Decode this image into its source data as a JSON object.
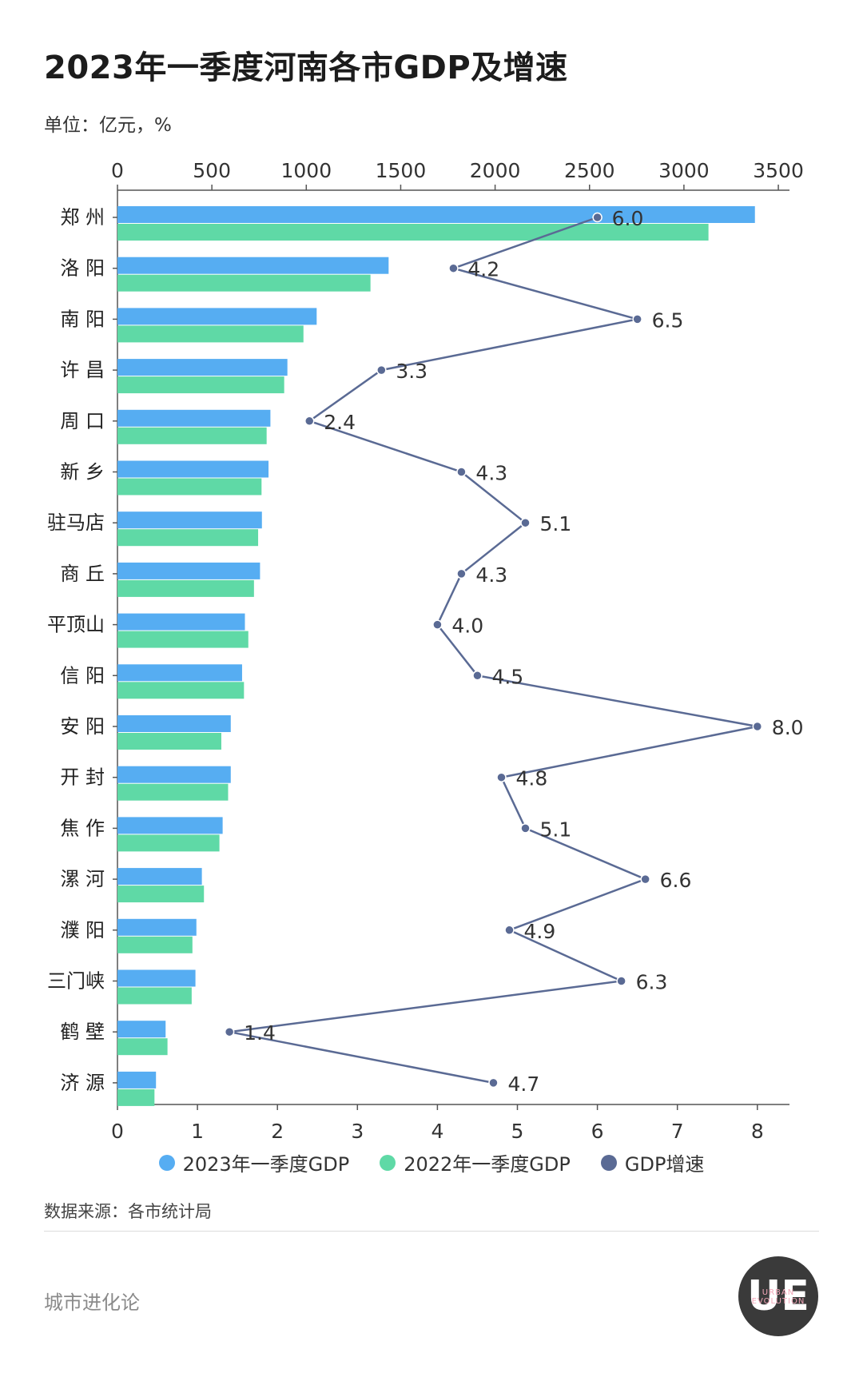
{
  "header": {
    "title": "2023年一季度河南各市GDP及增速",
    "unit": "单位：亿元，%"
  },
  "legend": {
    "gdp2023": "2023年一季度GDP",
    "gdp2022": "2022年一季度GDP",
    "growth": "GDP增速"
  },
  "footer": {
    "source": "数据来源：各市统计局",
    "brand": "城市进化论",
    "logo": "UE",
    "logo_sub": "URBAN EVOLUTION"
  },
  "colors": {
    "gdp2023": "#56adf2",
    "gdp2022": "#5fd9a6",
    "growth": "#5a6a94",
    "axis": "#555555"
  },
  "chart_data": {
    "type": "bar",
    "orientation": "horizontal",
    "categories": [
      "郑 州",
      "洛 阳",
      "南 阳",
      "许 昌",
      "周 口",
      "新 乡",
      "驻马店",
      "商 丘",
      "平顶山",
      "信 阳",
      "安 阳",
      "开 封",
      "焦 作",
      "漯 河",
      "濮 阳",
      "三门峡",
      "鹤 壁",
      "济 源"
    ],
    "series": [
      {
        "name": "2023年一季度GDP",
        "axis": "top",
        "values": [
          3376,
          1436,
          1055,
          900,
          810,
          800,
          765,
          755,
          675,
          660,
          600,
          600,
          557,
          447,
          418,
          413,
          255,
          204
        ]
      },
      {
        "name": "2022年一季度GDP",
        "axis": "top",
        "values": [
          3130,
          1340,
          985,
          883,
          790,
          763,
          745,
          723,
          693,
          670,
          550,
          586,
          540,
          458,
          397,
          393,
          265,
          196
        ]
      },
      {
        "name": "GDP增速",
        "type": "line",
        "axis": "bottom",
        "values": [
          6.0,
          4.2,
          6.5,
          3.3,
          2.4,
          4.3,
          5.1,
          4.3,
          4.0,
          4.5,
          8.0,
          4.8,
          5.1,
          6.6,
          4.9,
          6.3,
          1.4,
          4.7
        ],
        "labels": [
          "6.0",
          "4.2",
          "6.5",
          "3.3",
          "2.4",
          "4.3",
          "5.1",
          "4.3",
          "4.0",
          "4.5",
          "8.0",
          "4.8",
          "5.1",
          "6.6",
          "4.9",
          "6.3",
          "1.4",
          "4.7"
        ]
      }
    ],
    "top_axis": {
      "range": [
        0,
        3500
      ],
      "ticks": [
        0,
        500,
        1000,
        1500,
        2000,
        2500,
        3000,
        3500
      ],
      "tick_labels": [
        "0",
        "500",
        "1000",
        "1500",
        "2000",
        "2500",
        "3000",
        "3500"
      ]
    },
    "bottom_axis": {
      "range": [
        0,
        8.4
      ],
      "ticks": [
        0,
        1,
        2,
        3,
        4,
        5,
        6,
        7,
        8
      ],
      "tick_labels": [
        "0",
        "1",
        "2",
        "3",
        "4",
        "5",
        "6",
        "7",
        "8"
      ]
    },
    "grid": false,
    "legend_position": "bottom"
  }
}
